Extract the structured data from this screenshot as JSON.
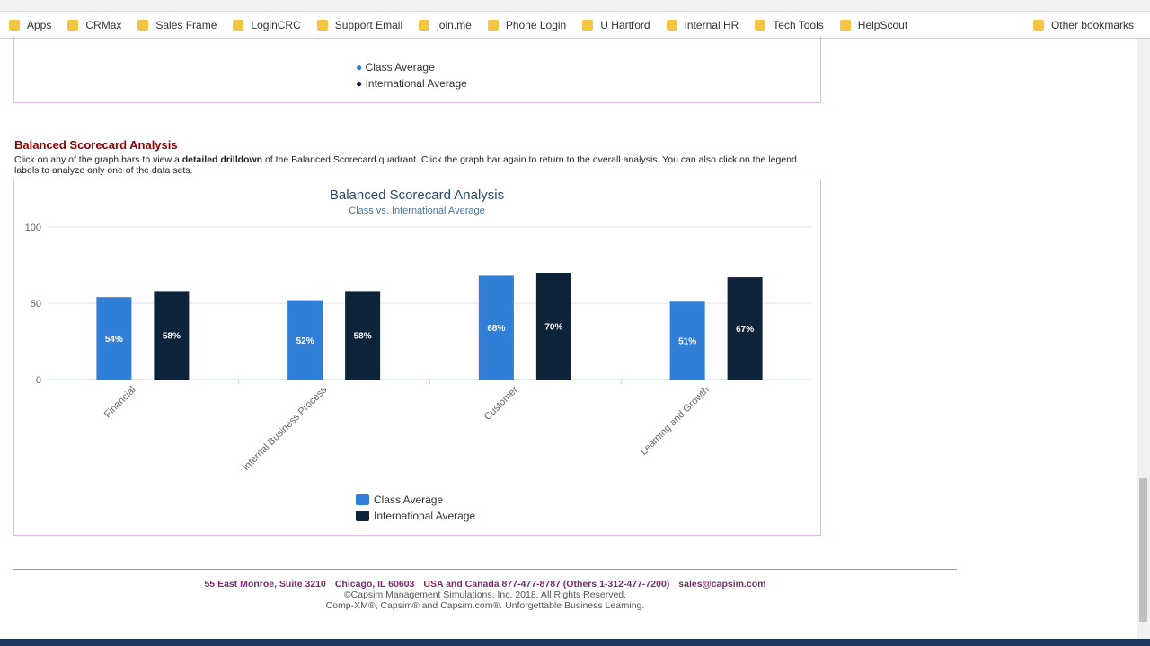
{
  "bookmarks": [
    "Apps",
    "CRMax",
    "Sales Frame",
    "LoginCRC",
    "Support Email",
    "join.me",
    "Phone Login",
    "U Hartford",
    "Internal HR",
    "Tech Tools",
    "HelpScout",
    "Other bookmarks"
  ],
  "previous_chart": {
    "legend": [
      "Class Average",
      "International Average"
    ]
  },
  "section": {
    "title": "Balanced Scorecard Analysis",
    "description": [
      "Click on any of the graph bars to view a ",
      "detailed drilldown",
      " of the Balanced Scorecard quadrant. Click the graph bar again to return to the overall analysis. You can also click on the legend labels to analyze only one of the data sets."
    ]
  },
  "chart": {
    "type": "bar",
    "title": "Balanced Scorecard Analysis",
    "subtitle": "Class vs. International Average",
    "categories": [
      "Financial",
      "Internal Business Process",
      "Customer",
      "Learning and Growth"
    ],
    "series": [
      {
        "name": "Class Average",
        "color": "#2f7ed8",
        "values": [
          54,
          52,
          68,
          51
        ],
        "value_labels": [
          "54%",
          "52%",
          "68%",
          "51%"
        ]
      },
      {
        "name": "International Average",
        "color": "#0d233a",
        "values": [
          58,
          58,
          70,
          67
        ],
        "value_labels": [
          "58%",
          "58%",
          "70%",
          "67%"
        ]
      }
    ],
    "ylim": [
      0,
      100
    ],
    "yticks": [
      0,
      50,
      100
    ],
    "grid": true
  },
  "footer": {
    "contact": [
      "55 East Monroe, Suite 3210",
      "Chicago, IL 60603",
      "USA and Canada 877-477-8787 (Others 1-312-477-7200)",
      "sales@capsim.com"
    ],
    "copyright": "©Capsim Management Simulations, Inc. 2018.  All Rights Reserved.",
    "trademarks": "Comp-XM®, Capsim® and Capsim.com®.  Unforgettable Business Learning."
  }
}
